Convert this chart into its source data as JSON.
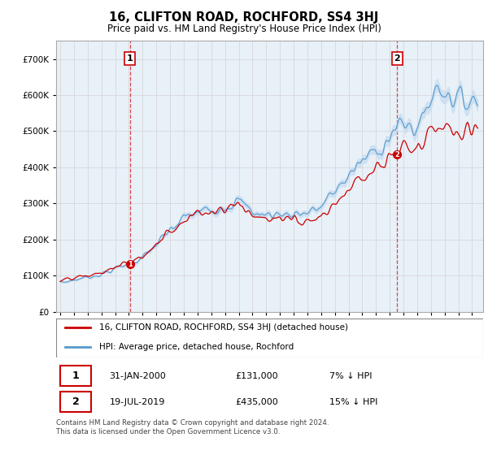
{
  "title": "16, CLIFTON ROAD, ROCHFORD, SS4 3HJ",
  "subtitle": "Price paid vs. HM Land Registry's House Price Index (HPI)",
  "legend_label_red": "16, CLIFTON ROAD, ROCHFORD, SS4 3HJ (detached house)",
  "legend_label_blue": "HPI: Average price, detached house, Rochford",
  "transaction1_date": "31-JAN-2000",
  "transaction1_price": "£131,000",
  "transaction1_hpi": "7% ↓ HPI",
  "transaction1_year": 2000.08,
  "transaction1_value": 131000,
  "transaction2_date": "19-JUL-2019",
  "transaction2_price": "£435,000",
  "transaction2_hpi": "15% ↓ HPI",
  "transaction2_year": 2019.54,
  "transaction2_value": 435000,
  "footnote": "Contains HM Land Registry data © Crown copyright and database right 2024.\nThis data is licensed under the Open Government Licence v3.0.",
  "red_color": "#cc0000",
  "blue_color": "#5599cc",
  "blue_fill_color": "#c8dcf0",
  "grid_color": "#d8d8d8",
  "ylim": [
    0,
    750000
  ],
  "yticks": [
    0,
    100000,
    200000,
    300000,
    400000,
    500000,
    600000,
    700000
  ],
  "xstart": 1994.7,
  "xend": 2025.8
}
